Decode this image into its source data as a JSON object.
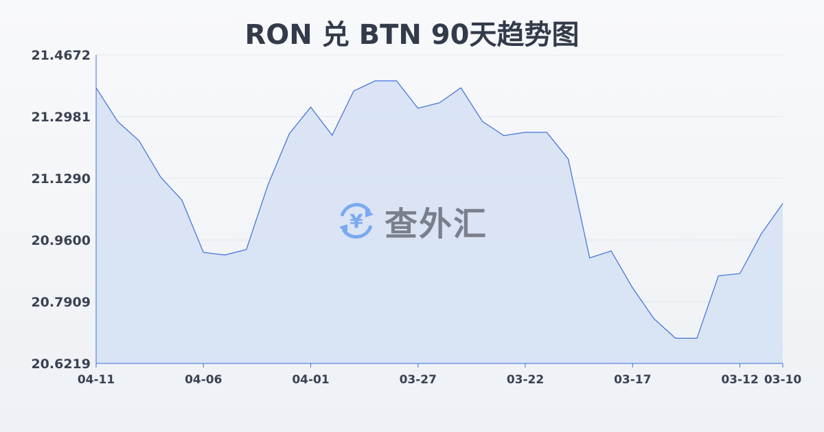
{
  "title": "RON 兑 BTN 90天趋势图",
  "watermark": "查外汇",
  "colors": {
    "line": "#3d6fd6",
    "fill": "#d5e0f5",
    "grid": "#e3e6ea",
    "text": "#3a4152",
    "logo_icon": "#7aaaf0",
    "logo_text": "#7b7f8c"
  },
  "chart_data": {
    "type": "area",
    "title": "RON 兑 BTN 90天趋势图",
    "xlabel": "",
    "ylabel": "",
    "ylim": [
      20.6219,
      21.4672
    ],
    "yticks": [
      "21.4672",
      "21.2981",
      "21.1290",
      "20.9600",
      "20.7909",
      "20.6219"
    ],
    "xticks": [
      "04-11",
      "04-06",
      "04-01",
      "03-27",
      "03-22",
      "03-17",
      "03-12",
      "03-10"
    ],
    "grid": true,
    "x": [
      "04-11",
      "04-10",
      "04-09",
      "04-08",
      "04-07",
      "04-06",
      "04-05",
      "04-04",
      "04-03",
      "04-02",
      "04-01",
      "03-31",
      "03-30",
      "03-29",
      "03-28",
      "03-27",
      "03-26",
      "03-25",
      "03-24",
      "03-23",
      "03-22",
      "03-21",
      "03-20",
      "03-19",
      "03-18",
      "03-17",
      "03-16",
      "03-15",
      "03-14",
      "03-13",
      "03-12",
      "03-11",
      "03-10"
    ],
    "values": [
      21.377,
      21.285,
      21.232,
      21.133,
      21.069,
      20.926,
      20.919,
      20.934,
      21.11,
      21.251,
      21.324,
      21.247,
      21.368,
      21.396,
      21.396,
      21.321,
      21.336,
      21.377,
      21.285,
      21.246,
      21.255,
      21.255,
      21.182,
      20.911,
      20.93,
      20.829,
      20.744,
      20.691,
      20.691,
      20.862,
      20.868,
      20.977,
      21.06
    ]
  }
}
